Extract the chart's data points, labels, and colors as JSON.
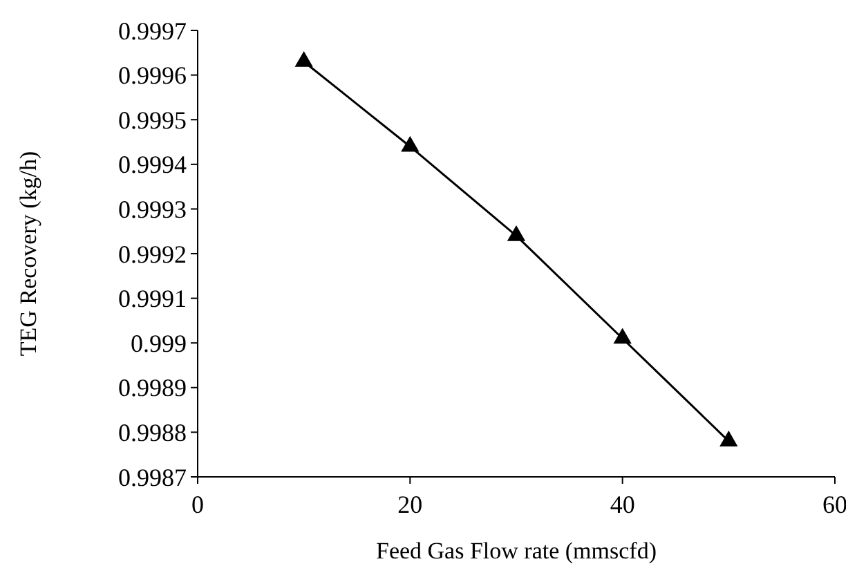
{
  "chart_data": {
    "type": "line",
    "xlabel": "Feed Gas Flow rate (mmscfd)",
    "ylabel": "TEG Recovery (kg/h)",
    "x": [
      10,
      20,
      30,
      40,
      50
    ],
    "series": [
      {
        "color": "#000000",
        "values": [
          0.99963,
          0.99944,
          0.99924,
          0.99901,
          0.99878
        ]
      }
    ],
    "xlim": [
      0,
      60
    ],
    "xticks": [
      0,
      20,
      40,
      60
    ],
    "ylim": [
      0.9987,
      0.9997
    ],
    "yticks": [
      0.9987,
      0.9988,
      0.9989,
      0.999,
      0.9991,
      0.9992,
      0.9993,
      0.9994,
      0.9995,
      0.9996,
      0.9997
    ],
    "marker": "triangle",
    "line_style": "solid"
  }
}
